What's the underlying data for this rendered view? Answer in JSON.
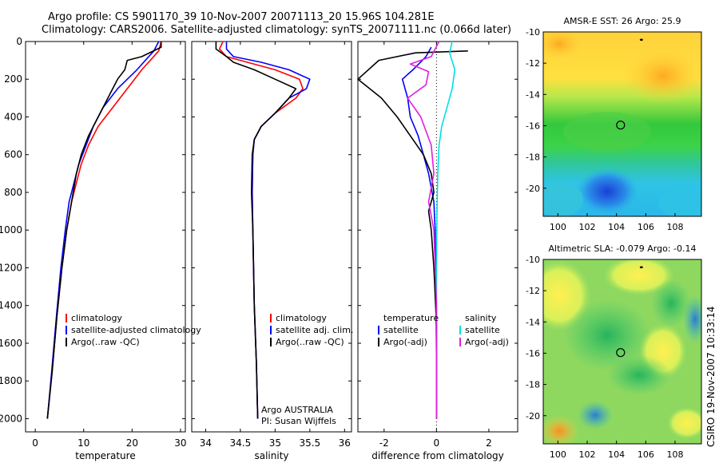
{
  "titles": {
    "line1": "Argo profile: CS 5901170_39 10-Nov-2007 20071113_20 15.96S 104.281E",
    "line2": "Climatology: CARS2006. Satellite-adjusted climatology: synTS_20071111.nc (0.066d later)"
  },
  "credit": "CSIRO 19-Nov-2007 10:33:14",
  "colors": {
    "climatology": "#ff0000",
    "satellite": "#0000ff",
    "argo": "#000000",
    "sal_sat": "#00e0e0",
    "sal_argo": "#e020e0"
  },
  "chart_data": [
    {
      "type": "line",
      "title": "",
      "xlabel": "temperature",
      "ylabel": "",
      "xlim": [
        -2,
        31
      ],
      "ylim": [
        2070,
        0
      ],
      "xticks": [
        0,
        10,
        20,
        30
      ],
      "yticks": [
        0,
        200,
        400,
        600,
        800,
        1000,
        1200,
        1400,
        1600,
        1800,
        2000
      ],
      "legend": [
        "climatology",
        "satellite-adjusted climatology",
        "Argo(..raw -QC)"
      ],
      "series": [
        {
          "name": "climatology",
          "color": "red",
          "x": [
            26,
            25.5,
            22,
            19,
            16,
            13,
            11,
            9.5,
            8.5,
            7.5,
            6.5,
            5.5,
            4.5,
            3.5,
            2.5
          ],
          "y": [
            0,
            50,
            150,
            250,
            350,
            450,
            550,
            650,
            750,
            850,
            1000,
            1200,
            1450,
            1750,
            2000
          ]
        },
        {
          "name": "satellite-adjusted climatology",
          "color": "blue",
          "x": [
            25.5,
            24.5,
            21,
            17,
            14,
            12,
            10.5,
            9,
            8,
            7,
            6.2,
            5.3,
            4.4,
            3.4,
            2.5
          ],
          "y": [
            0,
            50,
            150,
            250,
            350,
            450,
            550,
            650,
            750,
            850,
            1000,
            1200,
            1450,
            1750,
            2000
          ]
        },
        {
          "name": "Argo(..raw -QC)",
          "color": "black",
          "x": [
            26,
            26,
            22,
            19,
            18.5,
            17,
            15,
            13,
            11,
            9.5,
            8.5,
            7.5,
            6.5,
            5.5,
            4.5,
            3.5,
            2.5
          ],
          "y": [
            0,
            30,
            80,
            100,
            150,
            200,
            300,
            400,
            500,
            600,
            700,
            850,
            1000,
            1200,
            1450,
            1750,
            2000
          ]
        }
      ]
    },
    {
      "type": "line",
      "title": "",
      "xlabel": "salinity",
      "ylabel": "",
      "xlim": [
        33.8,
        36.1
      ],
      "ylim": [
        2070,
        0
      ],
      "xticks": [
        34,
        34.5,
        35,
        35.5,
        36
      ],
      "legend": [
        "climatology",
        "satellite adj. clim.",
        "Argo(..raw -QC)"
      ],
      "annotation": [
        "Argo AUSTRALIA",
        "PI: Susan Wijffels"
      ],
      "series": [
        {
          "name": "climatology",
          "color": "red",
          "x": [
            34.25,
            34.2,
            34.3,
            34.6,
            35.0,
            35.35,
            35.4,
            35.3,
            35.0,
            34.8,
            34.7,
            34.68,
            34.67,
            34.68,
            34.7,
            34.73,
            34.75
          ],
          "y": [
            0,
            40,
            80,
            110,
            150,
            200,
            250,
            300,
            380,
            450,
            520,
            600,
            800,
            1000,
            1400,
            1700,
            2000
          ]
        },
        {
          "name": "satellite adj. clim.",
          "color": "blue",
          "x": [
            34.3,
            34.3,
            34.4,
            34.8,
            35.2,
            35.5,
            35.45,
            35.2,
            35.0,
            34.8,
            34.7,
            34.68,
            34.67,
            34.68,
            34.7,
            34.73,
            34.75
          ],
          "y": [
            0,
            40,
            80,
            110,
            150,
            200,
            250,
            300,
            380,
            450,
            520,
            600,
            800,
            1000,
            1400,
            1700,
            2000
          ]
        },
        {
          "name": "Argo(..raw -QC)",
          "color": "black",
          "x": [
            34.15,
            34.15,
            34.3,
            34.4,
            34.7,
            35.0,
            35.3,
            35.2,
            35.0,
            34.8,
            34.7,
            34.67,
            34.66,
            34.68,
            34.7,
            34.73,
            34.75
          ],
          "y": [
            0,
            40,
            80,
            110,
            150,
            200,
            250,
            300,
            380,
            450,
            520,
            600,
            800,
            1000,
            1400,
            1700,
            2000
          ]
        }
      ]
    },
    {
      "type": "line",
      "title": "",
      "xlabel": "difference from climatology",
      "ylabel": "",
      "xlim": [
        -3,
        3.1
      ],
      "ylim": [
        2070,
        0
      ],
      "xticks": [
        -2,
        0,
        2
      ],
      "legend_temperature": [
        "temperature",
        "satellite",
        "Argo(-adj)"
      ],
      "legend_salinity": [
        "salinity",
        "satellite",
        "Argo(-adj)"
      ],
      "series": [
        {
          "name": "temperature satellite",
          "color": "blue",
          "x": [
            -0.2,
            -0.4,
            -0.9,
            -1.3,
            -1.1,
            -1.0,
            -0.7,
            -0.5,
            -0.3,
            -0.1,
            -0.05,
            -0.02,
            0,
            0
          ],
          "y": [
            30,
            80,
            150,
            200,
            300,
            400,
            500,
            600,
            700,
            850,
            1000,
            1400,
            1700,
            2000
          ]
        },
        {
          "name": "temperature Argo(-adj)",
          "color": "black",
          "x": [
            1.2,
            -0.8,
            -2.2,
            -3.0,
            -2.1,
            -1.5,
            -1.0,
            -0.5,
            -0.2,
            -0.1,
            -0.3,
            -0.2,
            -0.1,
            0,
            0
          ],
          "y": [
            50,
            60,
            100,
            200,
            300,
            400,
            500,
            600,
            700,
            800,
            900,
            1000,
            1200,
            1500,
            2000
          ]
        },
        {
          "name": "salinity satellite",
          "color": "cyan",
          "x": [
            0.6,
            0.5,
            0.7,
            0.6,
            0.4,
            0.2,
            0.1,
            0.05,
            0.02,
            0,
            0,
            0
          ],
          "y": [
            0,
            60,
            150,
            250,
            350,
            450,
            550,
            700,
            900,
            1200,
            1600,
            2000
          ]
        },
        {
          "name": "salinity Argo(-adj)",
          "color": "magenta",
          "x": [
            0.1,
            -0.2,
            -1.0,
            -0.3,
            -0.4,
            -1.1,
            -0.6,
            -0.2,
            -0.1,
            -0.3,
            -0.1,
            0,
            0
          ],
          "y": [
            0,
            80,
            120,
            160,
            230,
            300,
            400,
            550,
            700,
            850,
            1000,
            1400,
            2000
          ]
        }
      ]
    },
    {
      "type": "heatmap",
      "title": "AMSR-E SST: 26 Argo: 25.9",
      "xlim": [
        99,
        109.8
      ],
      "ylim": [
        -21.8,
        -10
      ],
      "xticks": [
        100,
        102,
        104,
        106,
        108
      ],
      "yticks": [
        -10,
        -12,
        -14,
        -16,
        -18,
        -20
      ],
      "marker": {
        "x": 104.28,
        "y": -15.96
      }
    },
    {
      "type": "heatmap",
      "title": "Altimetric SLA: -0.079 Argo: -0.14",
      "xlim": [
        99,
        109.8
      ],
      "ylim": [
        -21.8,
        -10
      ],
      "xticks": [
        100,
        102,
        104,
        106,
        108
      ],
      "yticks": [
        -10,
        -12,
        -14,
        -16,
        -18,
        -20
      ],
      "marker": {
        "x": 104.28,
        "y": -15.96
      }
    }
  ]
}
